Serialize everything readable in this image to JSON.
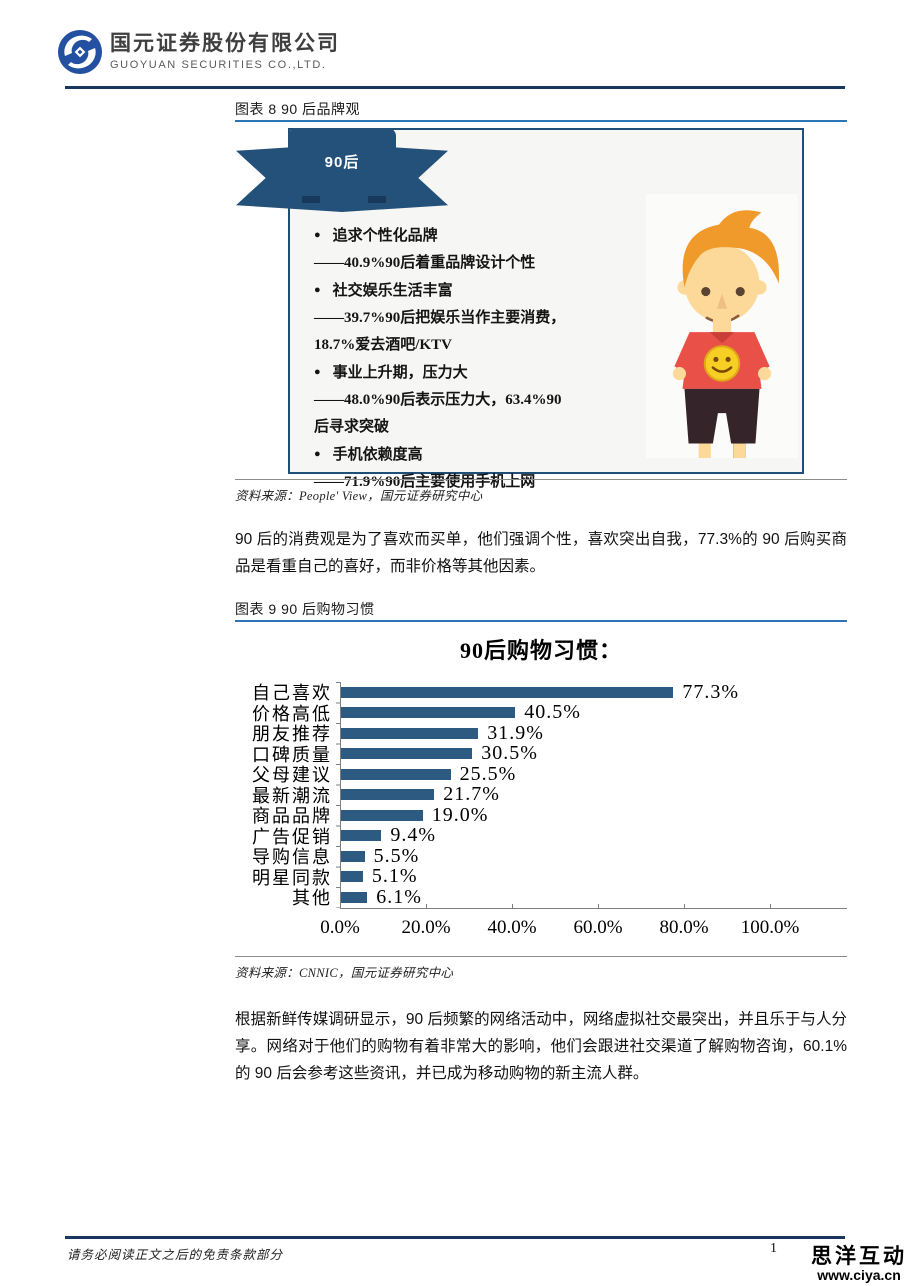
{
  "header": {
    "company_cn": "国元证券股份有限公司",
    "company_en": "GUOYUAN SECURITIES CO.,LTD."
  },
  "figure8": {
    "caption": "图表 8 90 后品牌观",
    "ribbon_label": "90后",
    "bullets": [
      {
        "bullet": true,
        "text": "追求个性化品牌"
      },
      {
        "bullet": false,
        "text": "——40.9%90后着重品牌设计个性"
      },
      {
        "bullet": true,
        "text": "社交娱乐生活丰富"
      },
      {
        "bullet": false,
        "text": "——39.7%90后把娱乐当作主要消费，"
      },
      {
        "bullet": false,
        "text": "18.7%爱去酒吧/KTV"
      },
      {
        "bullet": true,
        "text": "事业上升期，压力大"
      },
      {
        "bullet": false,
        "text": "——48.0%90后表示压力大，63.4%90"
      },
      {
        "bullet": false,
        "text": "后寻求突破"
      },
      {
        "bullet": true,
        "text": "手机依赖度高"
      },
      {
        "bullet": false,
        "text": "——71.9%90后主要使用手机上网"
      }
    ],
    "illustration": "cartoon-90s-boy",
    "source": "资料来源：People' View，国元证券研究中心"
  },
  "paragraphs": {
    "p1": "90 后的消费观是为了喜欢而买单，他们强调个性，喜欢突出自我，77.3%的 90 后购买商品是看重自己的喜好，而非价格等其他因素。",
    "p2": "根据新鲜传媒调研显示，90 后频繁的网络活动中，网络虚拟社交最突出，并且乐于与人分享。网络对于他们的购物有着非常大的影响，他们会跟进社交渠道了解购物咨询，60.1%的 90 后会参考这些资讯，并已成为移动购物的新主流人群。"
  },
  "figure9": {
    "caption": "图表 9 90 后购物习惯",
    "source": "资料来源：CNNIC，国元证券研究中心"
  },
  "chart_data": {
    "type": "bar",
    "orientation": "horizontal",
    "title": "90后购物习惯：",
    "categories": [
      "自己喜欢",
      "价格高低",
      "朋友推荐",
      "口碑质量",
      "父母建议",
      "最新潮流",
      "商品品牌",
      "广告促销",
      "导购信息",
      "明星同款",
      "其他"
    ],
    "values": [
      77.3,
      40.5,
      31.9,
      30.5,
      25.5,
      21.7,
      19.0,
      9.4,
      5.5,
      5.1,
      6.1
    ],
    "value_labels": [
      "77.3%",
      "40.5%",
      "31.9%",
      "30.5%",
      "25.5%",
      "21.7%",
      "19.0%",
      "9.4%",
      "5.5%",
      "5.1%",
      "6.1%"
    ],
    "x_ticks": [
      "0.0%",
      "20.0%",
      "40.0%",
      "60.0%",
      "80.0%",
      "100.0%"
    ],
    "xlim": [
      0,
      100
    ],
    "grid": false,
    "legend": "none",
    "bar_color": "#2c5a80"
  },
  "footer": {
    "disclaimer": "请务必阅读正文之后的免责条款部分",
    "page_number": "1"
  },
  "watermark": {
    "line1": "思洋互动",
    "line2": "www.ciya.cn"
  },
  "colors": {
    "navy_rule": "#17375e",
    "box_border": "#1f4e79",
    "ribbon": "#235179",
    "caption_rule": "#2e75b6",
    "bar": "#2c5a80",
    "logo_blue": "#2350a0"
  }
}
